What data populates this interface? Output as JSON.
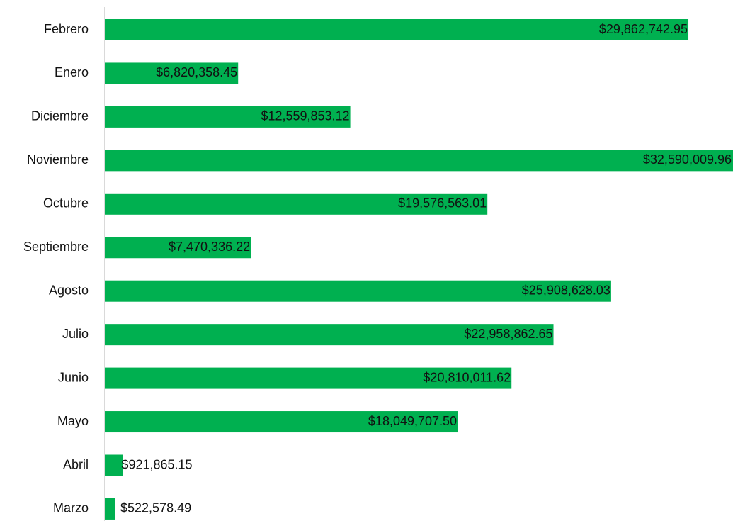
{
  "chart_data": {
    "type": "bar",
    "orientation": "horizontal",
    "categories": [
      "Febrero",
      "Enero",
      "Diciembre",
      "Noviembre",
      "Octubre",
      "Septiembre",
      "Agosto",
      "Julio",
      "Junio",
      "Mayo",
      "Abril",
      "Marzo"
    ],
    "values": [
      29862742.95,
      6820358.45,
      12559853.12,
      32590009.96,
      19576563.01,
      7470336.22,
      25908628.03,
      22958862.65,
      20810011.62,
      18049707.5,
      921865.15,
      522578.49
    ],
    "value_labels": [
      "$29,862,742.95",
      "$6,820,358.45",
      "$12,559,853.12",
      "$32,590,009.96",
      "$19,576,563.01",
      "$7,470,336.22",
      "$25,908,628.03",
      "$22,958,862.65",
      "$20,810,011.62",
      "$18,049,707.50",
      "$921,865.15",
      "$522,578.49"
    ],
    "color": "#00b050",
    "xlim": [
      0,
      32000000
    ]
  }
}
